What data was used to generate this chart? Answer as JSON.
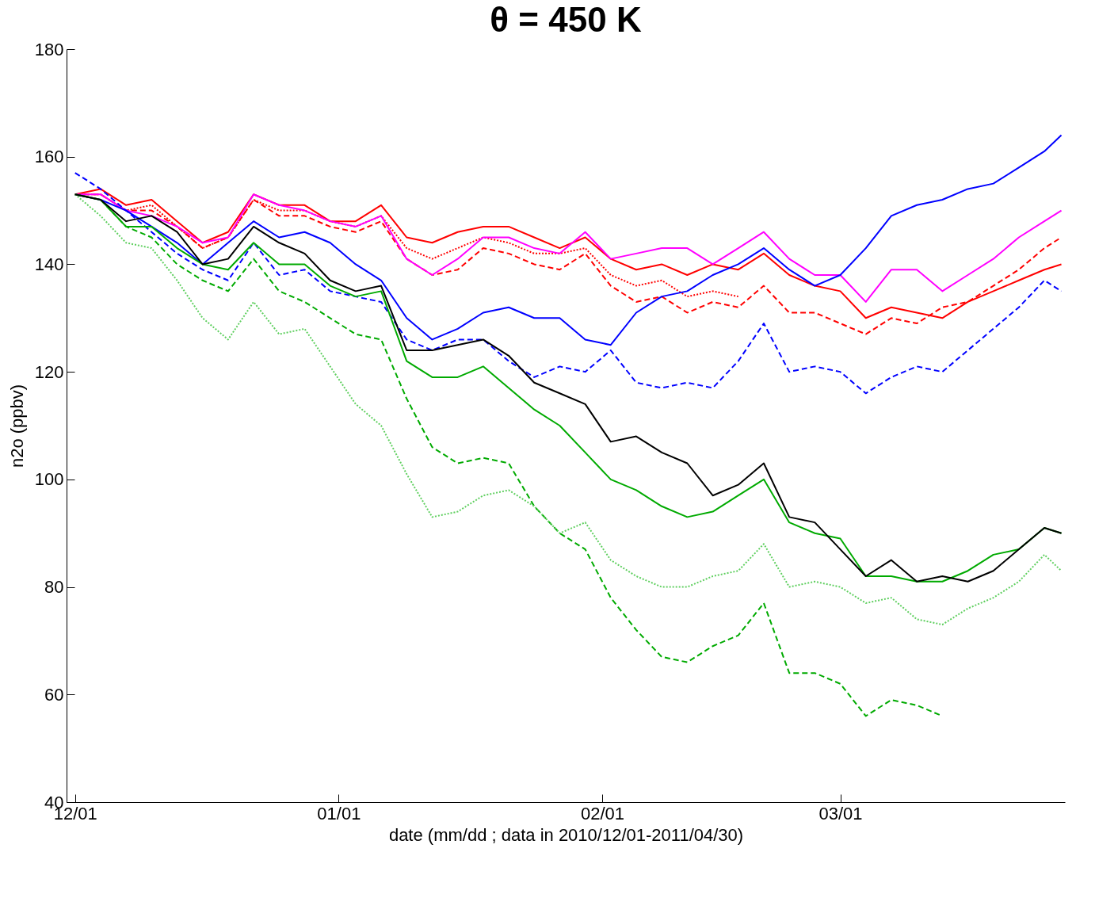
{
  "chart_data": {
    "type": "line",
    "title": "θ = 450 K",
    "xlabel": "date (mm/dd ; data in 2010/12/01-2011/04/30)",
    "ylabel": "n2o (ppbv)",
    "x": [
      "2010-12-01",
      "2010-12-04",
      "2010-12-07",
      "2010-12-10",
      "2010-12-13",
      "2010-12-16",
      "2010-12-19",
      "2010-12-22",
      "2010-12-25",
      "2010-12-28",
      "2010-12-31",
      "2011-01-03",
      "2011-01-06",
      "2011-01-09",
      "2011-01-12",
      "2011-01-15",
      "2011-01-18",
      "2011-01-21",
      "2011-01-24",
      "2011-01-27",
      "2011-01-30",
      "2011-02-02",
      "2011-02-05",
      "2011-02-08",
      "2011-02-11",
      "2011-02-14",
      "2011-02-17",
      "2011-02-20",
      "2011-02-23",
      "2011-02-26",
      "2011-03-01",
      "2011-03-04",
      "2011-03-07",
      "2011-03-10",
      "2011-03-13",
      "2011-03-16",
      "2011-03-19",
      "2011-03-22",
      "2011-03-25",
      "2011-03-27"
    ],
    "series": [
      {
        "color": "#ff0000",
        "line_style": "solid",
        "values": [
          153,
          154,
          151,
          152,
          148,
          144,
          146,
          153,
          151,
          151,
          148,
          148,
          151,
          145,
          144,
          146,
          147,
          147,
          145,
          143,
          145,
          141,
          139,
          140,
          138,
          140,
          139,
          142,
          138,
          136,
          135,
          130,
          132,
          131,
          130,
          133,
          135,
          137,
          139,
          140
        ]
      },
      {
        "color": "#ff0000",
        "line_style": "dashed",
        "values": [
          153,
          153,
          150,
          150,
          147,
          143,
          145,
          152,
          149,
          149,
          147,
          146,
          148,
          141,
          138,
          139,
          143,
          142,
          140,
          139,
          142,
          136,
          133,
          134,
          131,
          133,
          132,
          136,
          131,
          131,
          129,
          127,
          130,
          129,
          132,
          133,
          136,
          139,
          143,
          145
        ]
      },
      {
        "color": "#ff0000",
        "line_style": "dotted",
        "values": [
          153,
          153,
          150,
          151,
          147,
          143,
          145,
          152,
          150,
          150,
          148,
          147,
          149,
          143,
          141,
          143,
          145,
          144,
          142,
          142,
          143,
          138,
          136,
          137,
          134,
          135,
          134,
          null,
          null,
          null,
          null,
          null,
          null,
          null,
          null,
          null,
          null,
          null,
          null,
          null
        ]
      },
      {
        "color": "#ff00ff",
        "line_style": "solid",
        "values": [
          153,
          153,
          150,
          149,
          147,
          144,
          145,
          153,
          151,
          150,
          148,
          147,
          149,
          141,
          138,
          141,
          145,
          145,
          143,
          142,
          146,
          141,
          142,
          143,
          143,
          140,
          143,
          146,
          141,
          138,
          138,
          133,
          139,
          139,
          135,
          138,
          141,
          145,
          148,
          150
        ]
      },
      {
        "color": "#0000ff",
        "line_style": "solid",
        "values": [
          153,
          152,
          150,
          147,
          144,
          140,
          144,
          148,
          145,
          146,
          144,
          140,
          137,
          130,
          126,
          128,
          131,
          132,
          130,
          130,
          126,
          125,
          131,
          134,
          135,
          138,
          140,
          143,
          139,
          136,
          138,
          143,
          149,
          151,
          152,
          154,
          155,
          158,
          161,
          164
        ]
      },
      {
        "color": "#0000ff",
        "line_style": "dashed",
        "values": [
          157,
          154,
          150,
          146,
          142,
          139,
          137,
          144,
          138,
          139,
          135,
          134,
          133,
          126,
          124,
          126,
          126,
          122,
          119,
          121,
          120,
          124,
          118,
          117,
          118,
          117,
          122,
          129,
          120,
          121,
          120,
          116,
          119,
          121,
          120,
          124,
          128,
          132,
          137,
          135
        ]
      },
      {
        "color": "#00aa00",
        "line_style": "solid",
        "values": [
          153,
          152,
          147,
          147,
          143,
          140,
          139,
          144,
          140,
          140,
          136,
          134,
          135,
          122,
          119,
          119,
          121,
          117,
          113,
          110,
          105,
          100,
          98,
          95,
          93,
          94,
          97,
          100,
          92,
          90,
          89,
          82,
          82,
          81,
          81,
          83,
          86,
          87,
          91,
          90
        ]
      },
      {
        "color": "#00aa00",
        "line_style": "dashed",
        "values": [
          153,
          152,
          147,
          145,
          140,
          137,
          135,
          141,
          135,
          133,
          130,
          127,
          126,
          115,
          106,
          103,
          104,
          103,
          95,
          90,
          87,
          78,
          72,
          67,
          66,
          69,
          71,
          77,
          64,
          64,
          62,
          56,
          59,
          58,
          56,
          null,
          null,
          null,
          null,
          null
        ]
      },
      {
        "color": "#5fcf5f",
        "line_style": "dotted",
        "values": [
          153,
          149,
          144,
          143,
          137,
          130,
          126,
          133,
          127,
          128,
          121,
          114,
          110,
          101,
          93,
          94,
          97,
          98,
          95,
          90,
          92,
          85,
          82,
          80,
          80,
          82,
          83,
          88,
          80,
          81,
          80,
          77,
          78,
          74,
          73,
          76,
          78,
          81,
          86,
          83
        ]
      },
      {
        "color": "#000000",
        "line_style": "solid",
        "values": [
          153,
          152,
          148,
          149,
          146,
          140,
          141,
          147,
          144,
          142,
          137,
          135,
          136,
          124,
          124,
          125,
          126,
          123,
          118,
          116,
          114,
          107,
          108,
          105,
          103,
          97,
          99,
          103,
          93,
          92,
          87,
          82,
          85,
          81,
          82,
          81,
          83,
          87,
          91,
          90
        ]
      }
    ],
    "xlim": [
      "2010-11-30",
      "2011-03-27T10:00"
    ],
    "xticks": [
      {
        "value": "2010-12-01",
        "label": "12/01"
      },
      {
        "value": "2011-01-01",
        "label": "01/01"
      },
      {
        "value": "2011-02-01",
        "label": "02/01"
      },
      {
        "value": "2011-03-01",
        "label": "03/01"
      }
    ],
    "ylim": [
      40,
      180
    ],
    "yticks": [
      40,
      60,
      80,
      100,
      120,
      140,
      160,
      180
    ]
  }
}
